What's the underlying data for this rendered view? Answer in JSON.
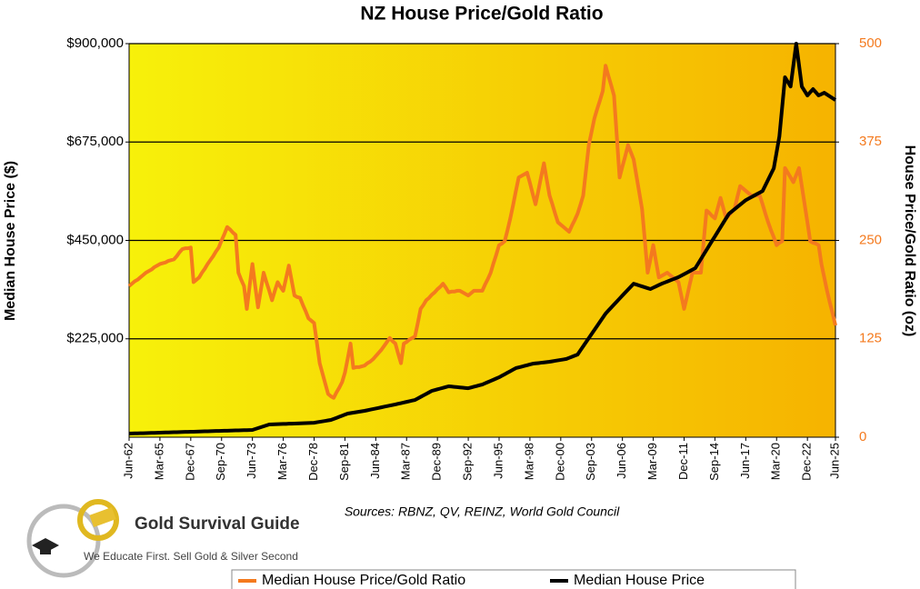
{
  "chart_data": {
    "type": "line",
    "title": "NZ House Price/Gold Ratio",
    "y_label": "Median House Price ($)",
    "y2_label": "House Price/Gold Ratio (oz)",
    "source": "Sources: RBNZ, QV, REINZ, World Gold Council",
    "grid": true,
    "legend": "bottom",
    "ylim": [
      0,
      900000
    ],
    "yticks": [
      {
        "value": 225000,
        "label": "$225,000"
      },
      {
        "value": 450000,
        "label": "$450,000"
      },
      {
        "value": 675000,
        "label": "$675,000"
      },
      {
        "value": 900000,
        "label": "$900,000"
      }
    ],
    "y2lim": [
      0,
      500
    ],
    "y2ticks": [
      0,
      125,
      250,
      375,
      500
    ],
    "categories": [
      "Jun-62",
      null,
      null,
      null,
      null,
      null,
      null,
      null,
      null,
      null,
      null,
      "Mar-65",
      null,
      null,
      null,
      null,
      null,
      null,
      null,
      null,
      null,
      null,
      "Dec-67",
      null,
      null,
      null,
      null,
      null,
      null,
      null,
      null,
      null,
      null,
      "Sep-70",
      null,
      null,
      null,
      null,
      null,
      null,
      null,
      null,
      null,
      null,
      "Jun-73",
      null,
      null,
      null,
      null,
      null,
      null,
      null,
      null,
      null,
      null,
      "Mar-76",
      null,
      null,
      null,
      null,
      null,
      null,
      null,
      null,
      null,
      null,
      "Dec-78",
      null,
      null,
      null,
      null,
      null,
      null,
      null,
      null,
      null,
      null,
      "Sep-81",
      null,
      null,
      null,
      null,
      null,
      null,
      null,
      null,
      null,
      null,
      "Jun-84",
      null,
      null,
      null,
      null,
      null,
      null,
      null,
      null,
      null,
      null,
      "Mar-87",
      null,
      null,
      null,
      null,
      null,
      null,
      null,
      null,
      null,
      null,
      "Dec-89",
      null,
      null,
      null,
      null,
      null,
      null,
      null,
      null,
      null,
      null,
      "Sep-92",
      null,
      null,
      null,
      null,
      null,
      null,
      null,
      null,
      null,
      null,
      "Jun-95",
      null,
      null,
      null,
      null,
      null,
      null,
      null,
      null,
      null,
      null,
      "Mar-98",
      null,
      null,
      null,
      null,
      null,
      null,
      null,
      null,
      null,
      null,
      "Dec-00",
      null,
      null,
      null,
      null,
      null,
      null,
      null,
      null,
      null,
      null,
      "Sep-03",
      null,
      null,
      null,
      null,
      null,
      null,
      null,
      null,
      null,
      null,
      "Jun-06",
      null,
      null,
      null,
      null,
      null,
      null,
      null,
      null,
      null,
      null,
      "Mar-09",
      null,
      null,
      null,
      null,
      null,
      null,
      null,
      null,
      null,
      null,
      "Dec-11",
      null,
      null,
      null,
      null,
      null,
      null,
      null,
      null,
      null,
      null,
      "Sep-14",
      null,
      null,
      null,
      null,
      null,
      null,
      null,
      null,
      null,
      null,
      "Jun-17",
      null,
      null,
      null,
      null,
      null,
      null,
      null,
      null,
      null,
      null,
      "Mar-20",
      null,
      null,
      null,
      null,
      null,
      null,
      null,
      null,
      null,
      null,
      "Dec-22",
      null,
      null,
      null,
      null,
      null,
      null,
      null,
      null,
      null,
      "Jun-25"
    ],
    "series": [
      {
        "name": "Median House Price/Gold Ratio",
        "color": "#f47a1e",
        "axis": "y2",
        "values": [
          192,
          195,
          198,
          200,
          203,
          206,
          209,
          211,
          213,
          216,
          218,
          220,
          221,
          222,
          224,
          225,
          226,
          230,
          235,
          239,
          240,
          240,
          241,
          197,
          200,
          203,
          209,
          214,
          220,
          225,
          230,
          236,
          241,
          250,
          258,
          267,
          264,
          260,
          257,
          209,
          200,
          192,
          163,
          192,
          220,
          192,
          165,
          187,
          209,
          197,
          186,
          174,
          186,
          197,
          191,
          186,
          202,
          218,
          199,
          180,
          178,
          177,
          168,
          160,
          151,
          148,
          145,
          120,
          94,
          81,
          68,
          55,
          52,
          50,
          57,
          63,
          70,
          82,
          100,
          119,
          88,
          89,
          89,
          90,
          91,
          94,
          96,
          99,
          103,
          107,
          111,
          116,
          121,
          126,
          122,
          119,
          106,
          94,
          119,
          121,
          124,
          126,
          128,
          145,
          163,
          168,
          174,
          177,
          181,
          184,
          188,
          191,
          195,
          190,
          184,
          185,
          185,
          186,
          186,
          184,
          182,
          180,
          183,
          186,
          186,
          186,
          186,
          194,
          201,
          209,
          221,
          232,
          244,
          246,
          249,
          263,
          278,
          295,
          313,
          330,
          332,
          334,
          336,
          323,
          309,
          296,
          313,
          331,
          348,
          327,
          307,
          296,
          284,
          273,
          270,
          267,
          264,
          261,
          269,
          276,
          284,
          295,
          307,
          339,
          371,
          388,
          405,
          417,
          428,
          440,
          472,
          459,
          447,
          434,
          382,
          330,
          344,
          357,
          371,
          362,
          353,
          332,
          311,
          290,
          250,
          209,
          226,
          244,
          223,
          203,
          205,
          207,
          209,
          206,
          203,
          200,
          197,
          180,
          163,
          178,
          194,
          209,
          209,
          209,
          209,
          249,
          288,
          285,
          281,
          278,
          291,
          304,
          291,
          278,
          282,
          286,
          290,
          305,
          319,
          316,
          313,
          310,
          307,
          307,
          307,
          307,
          296,
          284,
          273,
          263,
          254,
          244,
          247,
          249,
          342,
          336,
          330,
          324,
          333,
          342,
          319,
          296,
          273,
          249,
          247,
          246,
          244,
          220,
          203,
          186,
          171,
          157,
          142
        ]
      },
      {
        "name": "Median House Price",
        "color": "#000000",
        "values": [
          8300,
          8500,
          8700,
          8900,
          9100,
          9200,
          9400,
          9600,
          9800,
          10000,
          10200,
          10400,
          10600,
          10800,
          10900,
          11100,
          11300,
          11500,
          11700,
          11900,
          12100,
          12300,
          12500,
          12600,
          12800,
          13000,
          13200,
          13400,
          13600,
          13800,
          14000,
          14200,
          14300,
          14500,
          14700,
          14900,
          15100,
          15300,
          15500,
          15700,
          15900,
          16000,
          16200,
          16400,
          16600,
          18700,
          20800,
          22900,
          25000,
          27000,
          29100,
          29300,
          29600,
          29800,
          30100,
          30300,
          30500,
          30800,
          31000,
          31300,
          31500,
          31800,
          32000,
          32300,
          32500,
          32800,
          33000,
          34100,
          35200,
          36300,
          37300,
          38400,
          39500,
          41900,
          44300,
          46800,
          49200,
          51600,
          54000,
          55100,
          56100,
          57200,
          58200,
          59300,
          60300,
          61600,
          63000,
          64300,
          65600,
          67000,
          68300,
          69700,
          71000,
          72300,
          73700,
          75000,
          76500,
          77900,
          79400,
          80800,
          82300,
          83700,
          85200,
          88700,
          92100,
          95600,
          99100,
          102500,
          106000,
          107700,
          109500,
          111200,
          112900,
          114700,
          116400,
          115800,
          115100,
          114500,
          113900,
          113300,
          112600,
          112000,
          113700,
          115400,
          117100,
          118800,
          120500,
          123300,
          126000,
          128800,
          131500,
          134300,
          137000,
          140500,
          144000,
          147500,
          151000,
          154500,
          158000,
          159700,
          161300,
          163000,
          164700,
          166300,
          168000,
          168800,
          169500,
          170300,
          171000,
          171800,
          172500,
          173600,
          174700,
          175800,
          176800,
          177900,
          179000,
          181500,
          184000,
          186500,
          189000,
          198400,
          207800,
          217100,
          226500,
          235900,
          245200,
          254600,
          264000,
          273300,
          282700,
          289600,
          296500,
          303400,
          310200,
          317100,
          324000,
          330800,
          337500,
          344300,
          351000,
          349000,
          346900,
          344900,
          342900,
          340800,
          338800,
          341900,
          344900,
          348000,
          351000,
          353500,
          356000,
          358500,
          361000,
          363500,
          366000,
          369400,
          372900,
          376300,
          379700,
          383200,
          386600,
          397000,
          407400,
          417800,
          428200,
          438600,
          449000,
          459300,
          469700,
          480000,
          490300,
          500700,
          511000,
          516200,
          521300,
          526500,
          531700,
          536800,
          542000,
          545500,
          549000,
          552500,
          556000,
          559500,
          563000,
          576000,
          589000,
          602000,
          615000,
          651500,
          688000,
          755500,
          823000,
          812500,
          802000,
          851000,
          900000,
          851000,
          802000,
          791800,
          781500,
          788800,
          796000,
          788800,
          781500,
          784600,
          787700,
          783500,
          779400,
          775200,
          771000
        ]
      }
    ]
  },
  "logo": {
    "name": "Gold Survival Guide",
    "tagline": "We Educate First. Sell Gold & Silver Second"
  }
}
